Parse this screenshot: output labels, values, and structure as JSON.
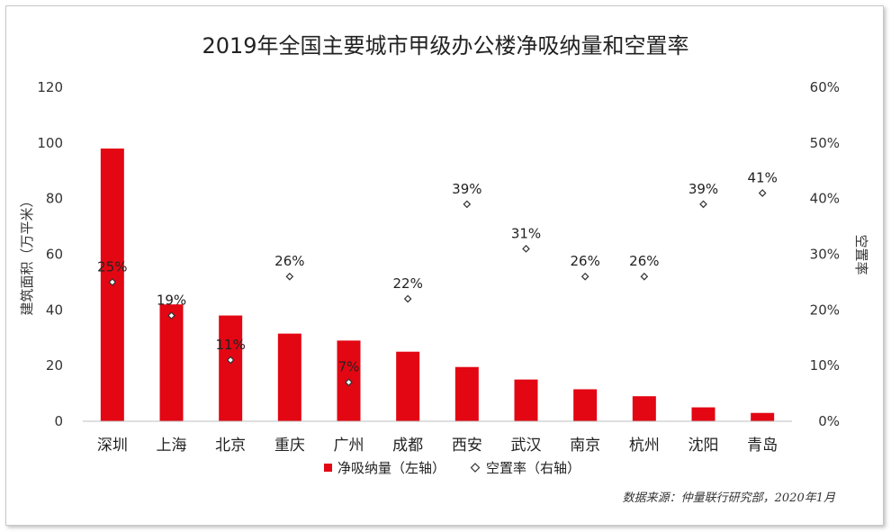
{
  "chart_data": {
    "type": "bar",
    "title": "2019年全国主要城市甲级办公楼净吸纳量和空置率",
    "categories": [
      "深圳",
      "上海",
      "北京",
      "重庆",
      "广州",
      "成都",
      "西安",
      "武汉",
      "南京",
      "杭州",
      "沈阳",
      "青岛"
    ],
    "series": [
      {
        "name": "净吸纳量（左轴）",
        "kind": "bar",
        "axis": "left",
        "color": "#e30613",
        "values": [
          98,
          42,
          38,
          31.5,
          29,
          25,
          19.5,
          15,
          11.5,
          9,
          5,
          3
        ]
      },
      {
        "name": "空置率（右轴）",
        "kind": "marker",
        "axis": "right",
        "color": "#333333",
        "values": [
          25,
          19,
          11,
          26,
          7,
          22,
          39,
          31,
          26,
          26,
          39,
          41
        ],
        "labels": [
          "25%",
          "19%",
          "11%",
          "26%",
          "7%",
          "22%",
          "39%",
          "31%",
          "26%",
          "26%",
          "39%",
          "41%"
        ]
      }
    ],
    "ylabel": "建筑面积（万平米）",
    "y2label": "空置率",
    "ylim": [
      0,
      120
    ],
    "y2lim": [
      0,
      60
    ],
    "yticks": [
      "0",
      "20",
      "40",
      "60",
      "80",
      "100",
      "120"
    ],
    "y2ticks": [
      "0%",
      "10%",
      "20%",
      "30%",
      "40%",
      "50%",
      "60%"
    ],
    "legend_position": "bottom",
    "grid": false,
    "source": "数据来源：仲量联行研究部，2020年1月"
  }
}
